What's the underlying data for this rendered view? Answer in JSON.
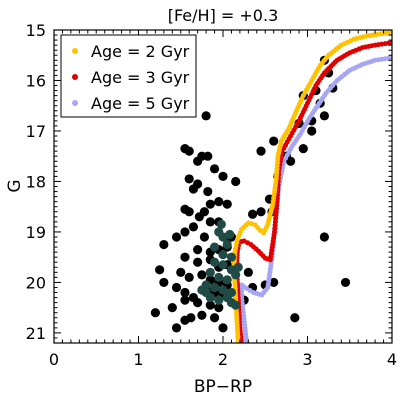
{
  "chart_data": {
    "type": "scatter",
    "title": "[Fe/H] = +0.3",
    "xlabel": "BP−RP",
    "ylabel": "G",
    "xlim": [
      0,
      4
    ],
    "ylim": [
      21.2,
      15
    ],
    "y_inverted": true,
    "xticks": [
      0,
      1,
      2,
      3,
      4
    ],
    "yticks": [
      15,
      16,
      17,
      18,
      19,
      20,
      21
    ],
    "xtick_labels": [
      "0",
      "1",
      "2",
      "3",
      "4"
    ],
    "ytick_labels": [
      "15",
      "16",
      "17",
      "18",
      "19",
      "20",
      "21"
    ],
    "grid": false,
    "legend_position": "top-left",
    "colors": {
      "age2": "#ffc200",
      "age3": "#e00000",
      "age5": "#a6a6f2",
      "stars": "#000000",
      "members": "#1f4a45"
    },
    "series": [
      {
        "name": "Age = 2 Gyr",
        "color": "#ffc200",
        "points": [
          [
            2.18,
            21.2
          ],
          [
            2.17,
            20.9
          ],
          [
            2.16,
            20.6
          ],
          [
            2.15,
            20.3
          ],
          [
            2.14,
            20.0
          ],
          [
            2.13,
            19.7
          ],
          [
            2.14,
            19.4
          ],
          [
            2.17,
            19.15
          ],
          [
            2.22,
            18.95
          ],
          [
            2.3,
            18.82
          ],
          [
            2.38,
            18.86
          ],
          [
            2.44,
            18.97
          ],
          [
            2.48,
            19.02
          ],
          [
            2.53,
            18.85
          ],
          [
            2.59,
            18.45
          ],
          [
            2.63,
            17.95
          ],
          [
            2.65,
            17.5
          ],
          [
            2.69,
            17.2
          ],
          [
            2.78,
            16.95
          ],
          [
            2.87,
            16.6
          ],
          [
            2.95,
            16.3
          ],
          [
            3.05,
            16.0
          ],
          [
            3.15,
            15.7
          ],
          [
            3.25,
            15.5
          ],
          [
            3.4,
            15.3
          ],
          [
            3.55,
            15.18
          ],
          [
            3.7,
            15.12
          ],
          [
            3.85,
            15.08
          ],
          [
            4.0,
            15.05
          ]
        ]
      },
      {
        "name": "Age = 3 Gyr",
        "color": "#e00000",
        "points": [
          [
            2.22,
            21.2
          ],
          [
            2.2,
            20.9
          ],
          [
            2.19,
            20.6
          ],
          [
            2.18,
            20.3
          ],
          [
            2.17,
            20.0
          ],
          [
            2.16,
            19.7
          ],
          [
            2.17,
            19.4
          ],
          [
            2.19,
            19.2
          ],
          [
            2.25,
            19.18
          ],
          [
            2.33,
            19.25
          ],
          [
            2.42,
            19.38
          ],
          [
            2.5,
            19.52
          ],
          [
            2.56,
            19.55
          ],
          [
            2.61,
            19.0
          ],
          [
            2.64,
            18.4
          ],
          [
            2.66,
            17.8
          ],
          [
            2.7,
            17.4
          ],
          [
            2.8,
            17.1
          ],
          [
            2.9,
            16.8
          ],
          [
            3.0,
            16.45
          ],
          [
            3.1,
            16.1
          ],
          [
            3.2,
            15.85
          ],
          [
            3.35,
            15.6
          ],
          [
            3.5,
            15.45
          ],
          [
            3.65,
            15.35
          ],
          [
            3.8,
            15.3
          ],
          [
            4.0,
            15.25
          ]
        ]
      },
      {
        "name": "Age = 5 Gyr",
        "color": "#a6a6f2",
        "points": [
          [
            2.28,
            21.2
          ],
          [
            2.26,
            20.9
          ],
          [
            2.24,
            20.6
          ],
          [
            2.22,
            20.3
          ],
          [
            2.22,
            20.05
          ],
          [
            2.28,
            20.12
          ],
          [
            2.36,
            20.2
          ],
          [
            2.46,
            20.25
          ],
          [
            2.53,
            20.1
          ],
          [
            2.58,
            19.5
          ],
          [
            2.62,
            18.8
          ],
          [
            2.66,
            18.1
          ],
          [
            2.72,
            17.6
          ],
          [
            2.82,
            17.3
          ],
          [
            2.92,
            17.05
          ],
          [
            3.02,
            16.75
          ],
          [
            3.12,
            16.5
          ],
          [
            3.22,
            16.25
          ],
          [
            3.35,
            16.0
          ],
          [
            3.5,
            15.8
          ],
          [
            3.65,
            15.68
          ],
          [
            3.8,
            15.6
          ],
          [
            4.0,
            15.55
          ]
        ]
      }
    ],
    "stars": [
      [
        3.2,
        15.6
      ],
      [
        3.25,
        15.85
      ],
      [
        3.1,
        16.2
      ],
      [
        2.95,
        16.3
      ],
      [
        3.15,
        16.45
      ],
      [
        3.3,
        16.15
      ],
      [
        3.2,
        16.7
      ],
      [
        3.05,
        16.8
      ],
      [
        2.9,
        16.85
      ],
      [
        3.05,
        17.0
      ],
      [
        2.95,
        17.35
      ],
      [
        2.8,
        17.6
      ],
      [
        2.75,
        17.5
      ],
      [
        2.68,
        17.55
      ],
      [
        2.6,
        17.2
      ],
      [
        2.45,
        17.4
      ],
      [
        2.65,
        17.9
      ],
      [
        2.55,
        18.35
      ],
      [
        2.58,
        18.6
      ],
      [
        2.45,
        18.6
      ],
      [
        2.35,
        18.65
      ],
      [
        2.15,
        18.0
      ],
      [
        2.0,
        17.9
      ],
      [
        1.9,
        17.75
      ],
      [
        1.8,
        16.7
      ],
      [
        1.75,
        17.5
      ],
      [
        1.7,
        17.6
      ],
      [
        1.82,
        17.5
      ],
      [
        1.6,
        17.4
      ],
      [
        1.55,
        17.35
      ],
      [
        1.6,
        17.95
      ],
      [
        1.65,
        18.15
      ],
      [
        1.7,
        18.05
      ],
      [
        1.55,
        18.55
      ],
      [
        1.6,
        18.6
      ],
      [
        1.72,
        18.7
      ],
      [
        1.82,
        18.2
      ],
      [
        1.85,
        18.45
      ],
      [
        1.95,
        18.4
      ],
      [
        2.05,
        18.45
      ],
      [
        1.78,
        18.6
      ],
      [
        1.85,
        18.8
      ],
      [
        1.95,
        18.8
      ],
      [
        1.65,
        18.9
      ],
      [
        1.78,
        19.1
      ],
      [
        1.55,
        19.0
      ],
      [
        1.45,
        19.1
      ],
      [
        1.3,
        19.25
      ],
      [
        1.7,
        19.35
      ],
      [
        1.85,
        19.4
      ],
      [
        1.95,
        19.35
      ],
      [
        2.05,
        19.3
      ],
      [
        1.55,
        19.5
      ],
      [
        1.7,
        19.6
      ],
      [
        1.85,
        19.55
      ],
      [
        1.95,
        19.7
      ],
      [
        2.05,
        19.65
      ],
      [
        1.25,
        19.75
      ],
      [
        1.5,
        19.8
      ],
      [
        1.6,
        19.9
      ],
      [
        1.75,
        19.85
      ],
      [
        1.85,
        19.95
      ],
      [
        1.95,
        20.0
      ],
      [
        2.05,
        20.05
      ],
      [
        1.3,
        20.0
      ],
      [
        1.45,
        20.1
      ],
      [
        1.55,
        20.2
      ],
      [
        1.65,
        20.3
      ],
      [
        1.8,
        20.15
      ],
      [
        1.9,
        20.2
      ],
      [
        2.0,
        20.25
      ],
      [
        1.55,
        20.35
      ],
      [
        1.7,
        20.4
      ],
      [
        1.85,
        20.45
      ],
      [
        1.95,
        20.5
      ],
      [
        1.4,
        20.5
      ],
      [
        1.2,
        20.6
      ],
      [
        1.62,
        20.7
      ],
      [
        1.75,
        20.65
      ],
      [
        1.9,
        20.7
      ],
      [
        1.45,
        20.9
      ],
      [
        1.55,
        20.75
      ],
      [
        2.0,
        20.9
      ],
      [
        2.1,
        19.1
      ],
      [
        2.05,
        19.15
      ],
      [
        2.15,
        20.2
      ],
      [
        2.3,
        19.8
      ],
      [
        3.2,
        19.1
      ],
      [
        3.45,
        20.0
      ],
      [
        2.85,
        20.7
      ],
      [
        2.6,
        20.0
      ],
      [
        2.5,
        20.05
      ],
      [
        2.35,
        20.1
      ],
      [
        2.25,
        20.35
      ]
    ],
    "members": [
      [
        1.95,
        19.0
      ],
      [
        2.0,
        19.1
      ],
      [
        2.05,
        19.25
      ],
      [
        1.9,
        19.3
      ],
      [
        2.0,
        19.45
      ],
      [
        2.1,
        19.5
      ],
      [
        1.9,
        19.6
      ],
      [
        2.0,
        19.65
      ],
      [
        2.1,
        19.75
      ],
      [
        1.85,
        19.8
      ],
      [
        1.95,
        19.9
      ],
      [
        2.05,
        19.95
      ],
      [
        2.15,
        19.85
      ],
      [
        1.8,
        20.05
      ],
      [
        1.9,
        20.1
      ],
      [
        2.0,
        20.15
      ],
      [
        2.1,
        20.2
      ],
      [
        1.85,
        20.3
      ],
      [
        1.95,
        20.35
      ],
      [
        2.05,
        20.3
      ],
      [
        1.75,
        20.15
      ],
      [
        1.8,
        20.2
      ],
      [
        2.1,
        20.4
      ],
      [
        1.98,
        18.85
      ],
      [
        2.08,
        19.05
      ],
      [
        2.18,
        19.7
      ],
      [
        2.15,
        20.45
      ]
    ]
  }
}
